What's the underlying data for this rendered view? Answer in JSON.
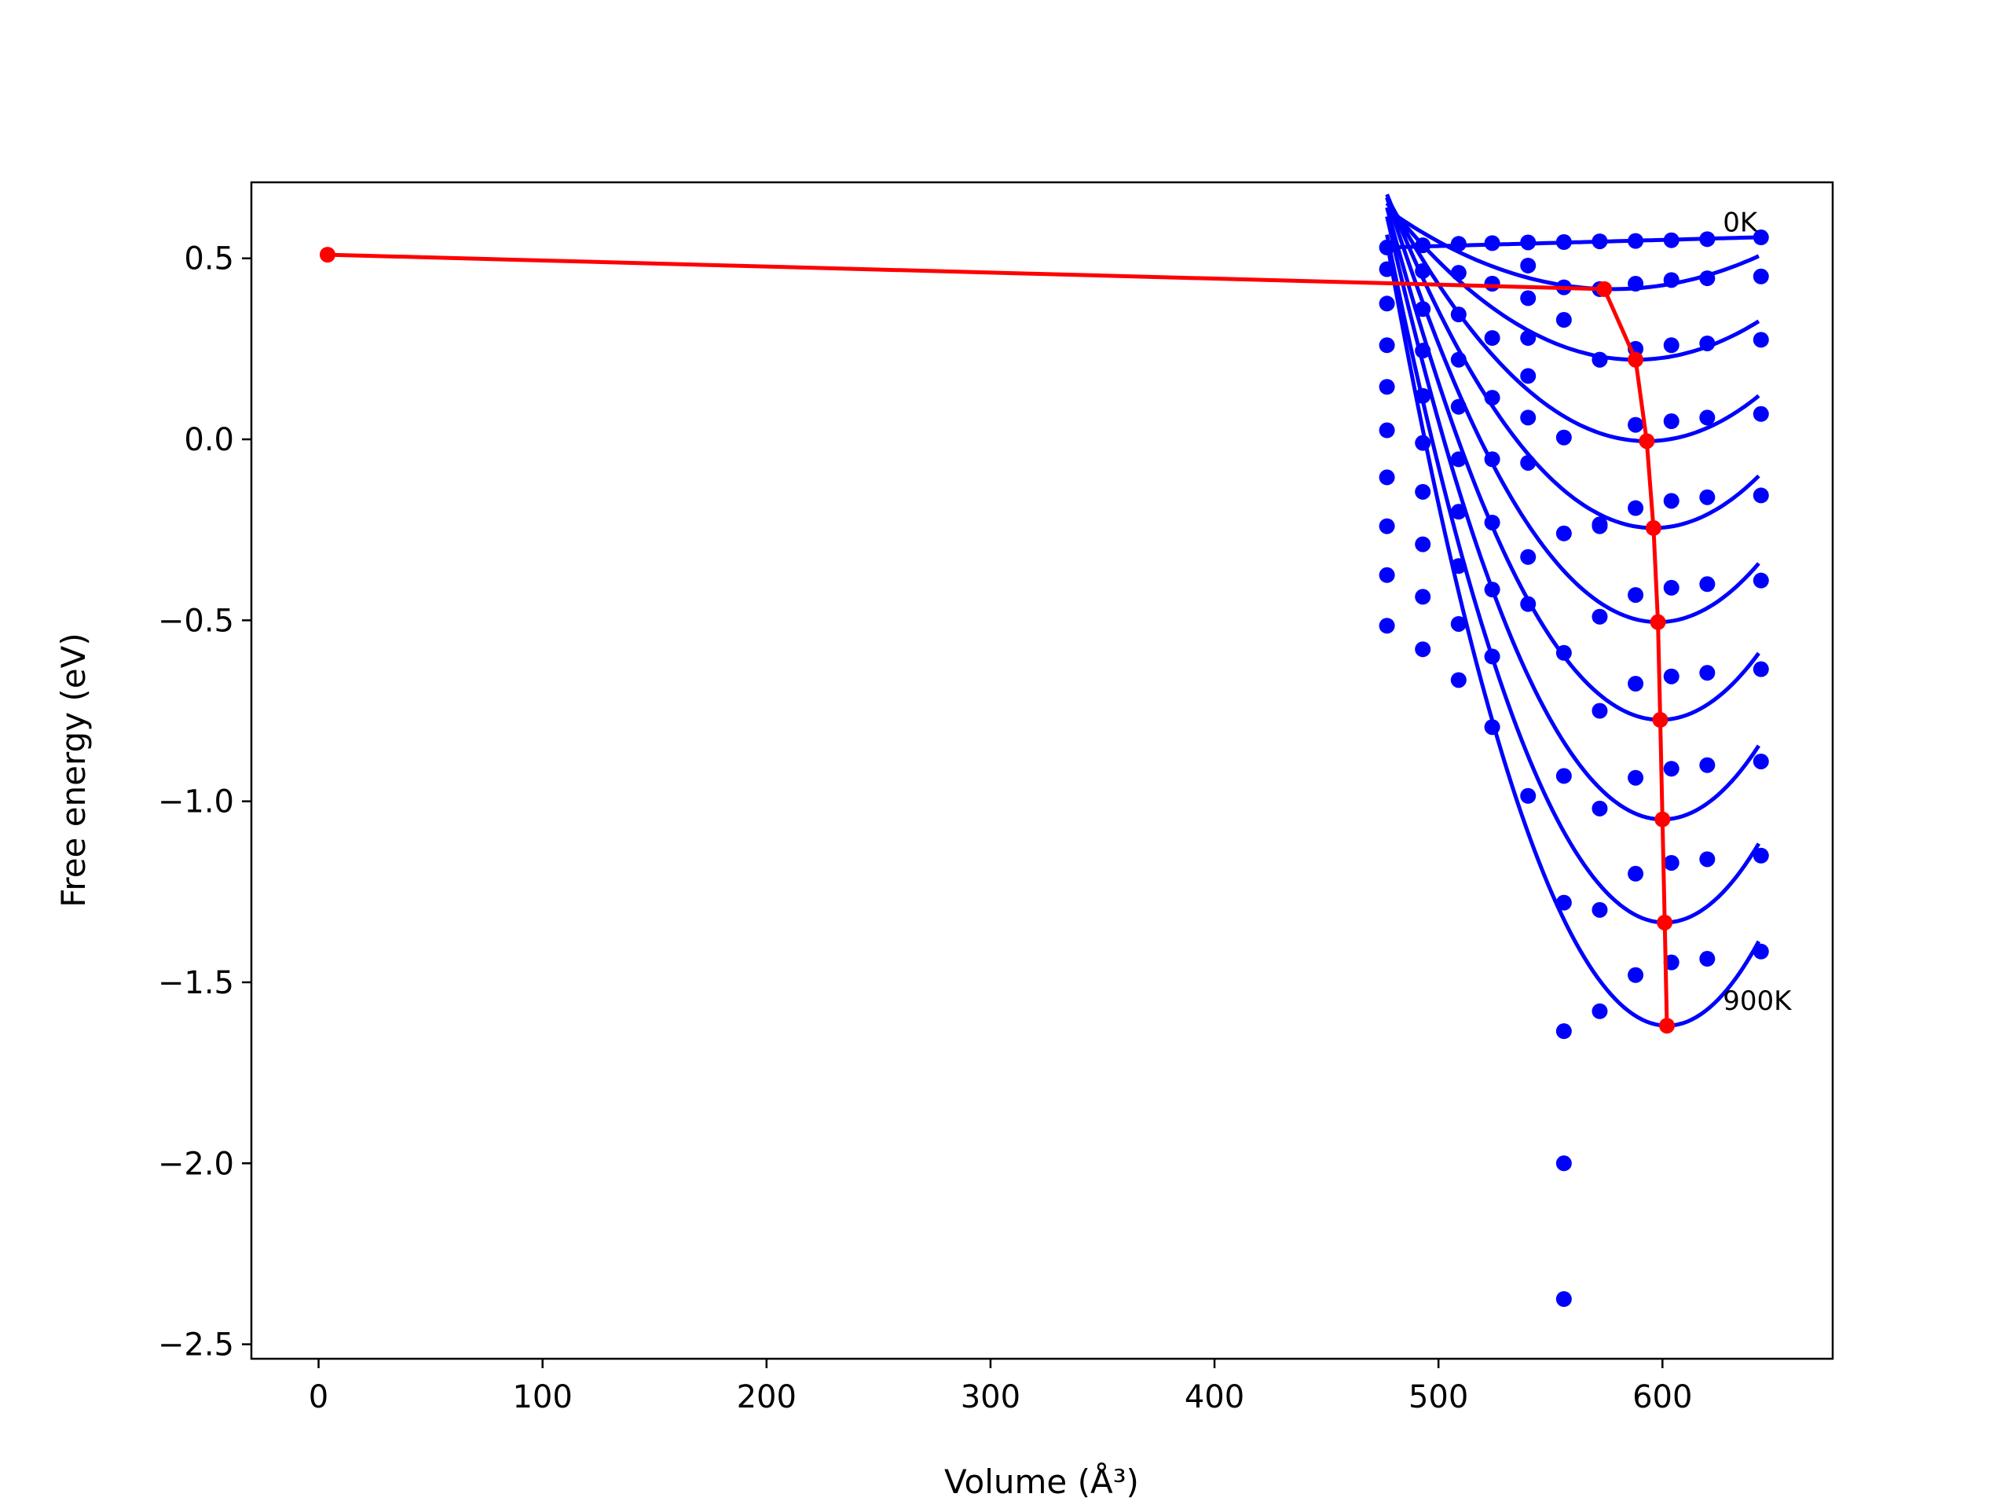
{
  "chart_data": {
    "type": "scatter",
    "title": "",
    "xlabel": "Volume (Å³)",
    "ylabel": "Free energy (eV)",
    "xlim": [
      -30,
      676
    ],
    "ylim": [
      -2.54,
      0.71
    ],
    "xticks": [
      0,
      100,
      200,
      300,
      400,
      500,
      600
    ],
    "xtick_labels": [
      "0",
      "100",
      "200",
      "300",
      "400",
      "500",
      "600"
    ],
    "yticks": [
      0.5,
      0.0,
      -0.5,
      -1.0,
      -1.5,
      -2.0,
      -2.5
    ],
    "ytick_labels": [
      "0.5",
      "0.0",
      "−0.5",
      "−1.0",
      "−1.5",
      "−2.0",
      "−2.5"
    ],
    "grid": false,
    "legend": "none",
    "volumes": [
      477,
      493,
      509,
      524,
      540,
      556,
      572,
      588,
      604,
      620,
      644
    ],
    "point_series": [
      {
        "color": "#0000ff",
        "values": [
          0.53,
          0.536,
          0.54,
          0.542,
          0.544,
          0.545,
          0.547,
          0.548,
          0.55,
          0.553,
          0.558
        ]
      },
      {
        "color": "#0000ff",
        "values": [
          0.47,
          0.465,
          0.46,
          0.43,
          0.48,
          0.42,
          0.415,
          0.43,
          0.44,
          0.445,
          0.45
        ]
      },
      {
        "color": "#0000ff",
        "values": [
          0.375,
          0.36,
          0.345,
          0.43,
          0.39,
          0.33,
          0.22,
          0.25,
          0.26,
          0.265,
          0.275
        ]
      },
      {
        "color": "#0000ff",
        "values": [
          0.26,
          0.245,
          0.22,
          0.28,
          0.28,
          0.005,
          0.22,
          0.04,
          0.05,
          0.06,
          0.07
        ]
      },
      {
        "color": "#0000ff",
        "values": [
          0.145,
          0.12,
          0.09,
          0.115,
          0.175,
          -0.26,
          -0.24,
          -0.19,
          -0.17,
          -0.16,
          -0.155
        ]
      },
      {
        "color": "#0000ff",
        "values": [
          0.025,
          -0.01,
          -0.055,
          -0.055,
          0.06,
          -0.59,
          -0.235,
          -0.43,
          -0.41,
          -0.4,
          -0.39
        ]
      },
      {
        "color": "#0000ff",
        "values": [
          -0.105,
          -0.145,
          -0.2,
          -0.23,
          -0.065,
          -0.93,
          -0.49,
          -0.675,
          -0.655,
          -0.645,
          -0.635
        ]
      },
      {
        "color": "#0000ff",
        "values": [
          -0.24,
          -0.29,
          -0.35,
          -0.415,
          -0.325,
          -1.28,
          -0.75,
          -0.935,
          -0.91,
          -0.9,
          -0.89
        ]
      },
      {
        "color": "#0000ff",
        "values": [
          -0.375,
          -0.435,
          -0.51,
          -0.6,
          -0.455,
          -1.635,
          -1.02,
          -1.2,
          -1.17,
          -1.16,
          -1.15
        ]
      },
      {
        "color": "#0000ff",
        "values": [
          -0.515,
          -0.58,
          -0.665,
          -0.795,
          -0.985,
          -2.0,
          -1.3,
          -1.48,
          -1.445,
          -1.435,
          -1.415
        ]
      },
      {
        "color": "#0000ff",
        "values": [
          null,
          null,
          null,
          null,
          null,
          -2.375,
          -1.58,
          null,
          null,
          null,
          null
        ]
      }
    ],
    "fit_curves": [
      {
        "color": "#0000ff",
        "x_range": [
          477,
          644
        ],
        "a": 0.0,
        "v0": 800,
        "fmin": 0.53,
        "slope": 0.00017
      },
      {
        "color": "#0000ff",
        "x_range": [
          477,
          644
        ],
        "a": 7.2e-06,
        "v0": 578,
        "fmin": 0.415
      },
      {
        "color": "#0000ff",
        "x_range": [
          477,
          644
        ],
        "a": 1.17e-05,
        "v0": 588,
        "fmin": 0.22
      },
      {
        "color": "#0000ff",
        "x_range": [
          477,
          644
        ],
        "a": 1.67e-05,
        "v0": 593,
        "fmin": -0.005
      },
      {
        "color": "#0000ff",
        "x_range": [
          477,
          644
        ],
        "a": 2.17e-05,
        "v0": 596,
        "fmin": -0.245
      },
      {
        "color": "#0000ff",
        "x_range": [
          477,
          644
        ],
        "a": 2.67e-05,
        "v0": 598,
        "fmin": -0.505
      },
      {
        "color": "#0000ff",
        "x_range": [
          477,
          644
        ],
        "a": 3.17e-05,
        "v0": 599,
        "fmin": -0.775
      },
      {
        "color": "#0000ff",
        "x_range": [
          477,
          644
        ],
        "a": 3.67e-05,
        "v0": 600,
        "fmin": -1.05
      },
      {
        "color": "#0000ff",
        "x_range": [
          477,
          644
        ],
        "a": 4.12e-05,
        "v0": 601,
        "fmin": -1.335
      },
      {
        "color": "#0000ff",
        "x_range": [
          477,
          644
        ],
        "a": 4.62e-05,
        "v0": 602,
        "fmin": -1.62
      }
    ],
    "equilibrium_line": {
      "color": "#ff0000",
      "points": [
        [
          4,
          0.51
        ],
        [
          574,
          0.415
        ],
        [
          588,
          0.22
        ],
        [
          593,
          -0.005
        ],
        [
          596,
          -0.245
        ],
        [
          598,
          -0.505
        ],
        [
          599,
          -0.775
        ],
        [
          600,
          -1.05
        ],
        [
          601,
          -1.335
        ],
        [
          602,
          -1.62
        ]
      ]
    },
    "annotations": [
      {
        "text": "0K",
        "x": 627,
        "y": 0.6
      },
      {
        "text": "900K",
        "x": 627,
        "y": -1.55
      }
    ]
  }
}
